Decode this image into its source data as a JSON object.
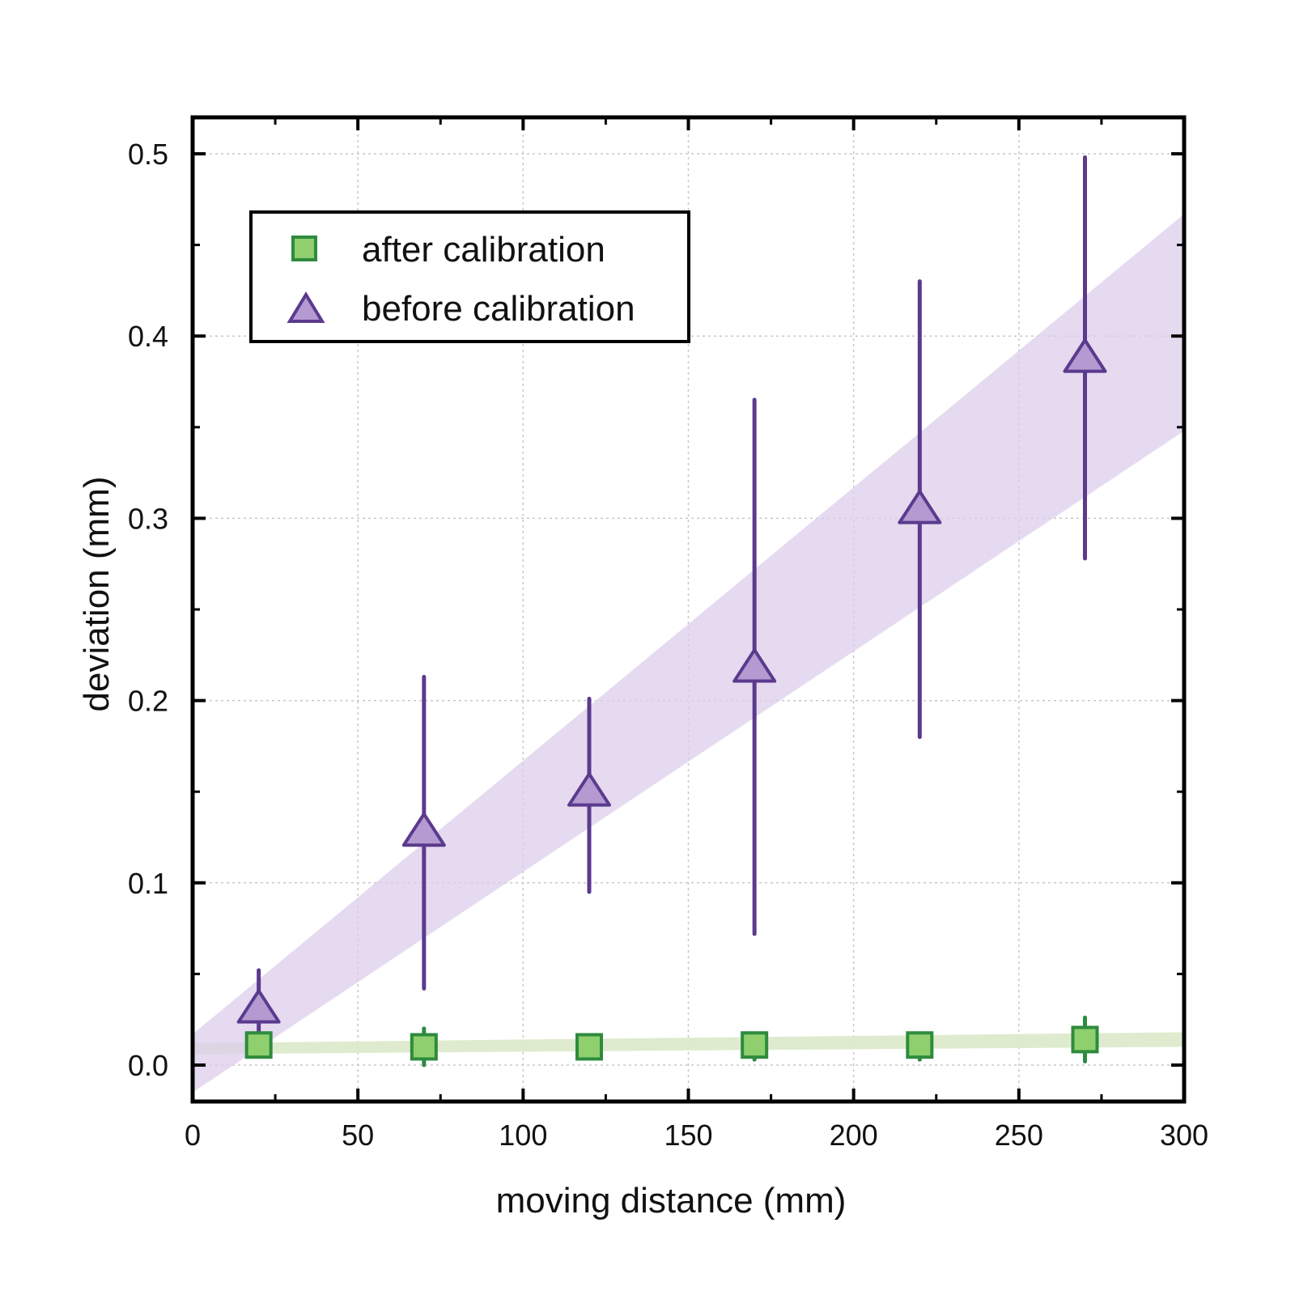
{
  "chart_data": {
    "type": "scatter",
    "title": "",
    "xlabel": "moving distance (mm)",
    "ylabel": "deviation (mm)",
    "xlim": [
      0,
      300
    ],
    "ylim": [
      -0.02,
      0.52
    ],
    "x_ticks": [
      0,
      50,
      100,
      150,
      200,
      250,
      300
    ],
    "y_ticks": [
      0.0,
      0.1,
      0.2,
      0.3,
      0.4,
      0.5
    ],
    "x_tick_labels": [
      "0",
      "50",
      "100",
      "150",
      "200",
      "250",
      "300"
    ],
    "y_tick_labels": [
      "0.0",
      "0.1",
      "0.2",
      "0.3",
      "0.4",
      "0.5"
    ],
    "grid": true,
    "legend_position": "top-left",
    "series": [
      {
        "name": "after calibration",
        "marker": "square",
        "color": "#2e8b3e",
        "fill": "#8fcf6e",
        "x": [
          20,
          70,
          120,
          170,
          220,
          270
        ],
        "y": [
          0.011,
          0.01,
          0.01,
          0.011,
          0.011,
          0.014
        ],
        "err_low": [
          0.003,
          0.01,
          0.003,
          0.008,
          0.008,
          0.012
        ],
        "err_high": [
          0.003,
          0.01,
          0.003,
          0.005,
          0.005,
          0.012
        ],
        "band": {
          "x": [
            0,
            300
          ],
          "lower": [
            0.006,
            0.01
          ],
          "upper": [
            0.012,
            0.018
          ],
          "color": "#dbe9c9"
        }
      },
      {
        "name": "before calibration",
        "marker": "triangle",
        "color": "#5b3a8e",
        "fill": "#b49ad1",
        "x": [
          20,
          70,
          120,
          170,
          220,
          270
        ],
        "y": [
          0.031,
          0.128,
          0.15,
          0.218,
          0.305,
          0.388
        ],
        "err_low": [
          0.021,
          0.086,
          0.055,
          0.146,
          0.125,
          0.11
        ],
        "err_high": [
          0.021,
          0.085,
          0.051,
          0.147,
          0.125,
          0.11
        ],
        "band": {
          "x": [
            0,
            300
          ],
          "lower": [
            -0.015,
            0.348
          ],
          "upper": [
            0.017,
            0.467
          ],
          "color": "#dccdea"
        }
      }
    ]
  }
}
